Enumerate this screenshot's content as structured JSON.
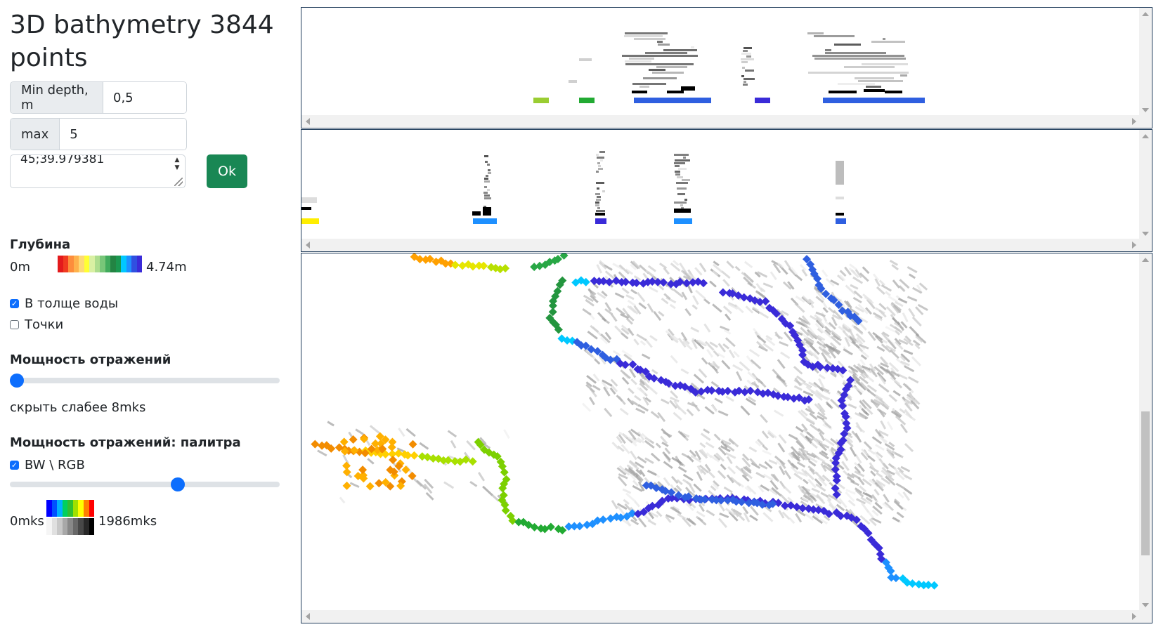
{
  "title": "3D bathymetry 3844 points",
  "inputs": {
    "min_depth_label": "Min depth, m",
    "min_depth_value": "0,5",
    "max_label": "max",
    "max_value": "5",
    "coords_text": "45;39.979381",
    "ok_label": "Ok"
  },
  "depth": {
    "heading": "Глубина",
    "min_label": "0m",
    "max_label": "4.74m",
    "palette": [
      "#e31a1c",
      "#f03b20",
      "#fd8d3c",
      "#feb24c",
      "#fed976",
      "#ffff33",
      "#d9f0a3",
      "#addd8e",
      "#78c679",
      "#41ab5d",
      "#238443",
      "#1a9850",
      "#00c8ff",
      "#1e90ff",
      "#3050e0",
      "#3a2bd8"
    ]
  },
  "options": {
    "water_column_label": "В толще воды",
    "water_column_checked": true,
    "points_label": "Точки",
    "points_checked": false
  },
  "power": {
    "heading": "Мощность отражений",
    "slider_fraction": 0.0,
    "hide_text": "скрыть слабее 8mks"
  },
  "palette_section": {
    "heading": "Мощность отражений: палитра",
    "bw_rgb_label": "BW \\ RGB",
    "bw_rgb_checked": true,
    "slider_fraction": 0.63,
    "min_label": "0mks",
    "max_label": "1986mks",
    "rgb_colors": [
      "#0000ff",
      "#0050ff",
      "#00b0ff",
      "#00d060",
      "#30c030",
      "#a0e000",
      "#ffff00",
      "#ff8000",
      "#ff0000"
    ],
    "bw_colors": [
      "#f5f5f5",
      "#e0e0e0",
      "#c8c8c8",
      "#a8a8a8",
      "#888888",
      "#686868",
      "#484848",
      "#282828",
      "#000000"
    ]
  },
  "colors": {
    "ok_button": "#198754",
    "accent": "#0d6efd",
    "panel_border": "#1f3b5a"
  }
}
